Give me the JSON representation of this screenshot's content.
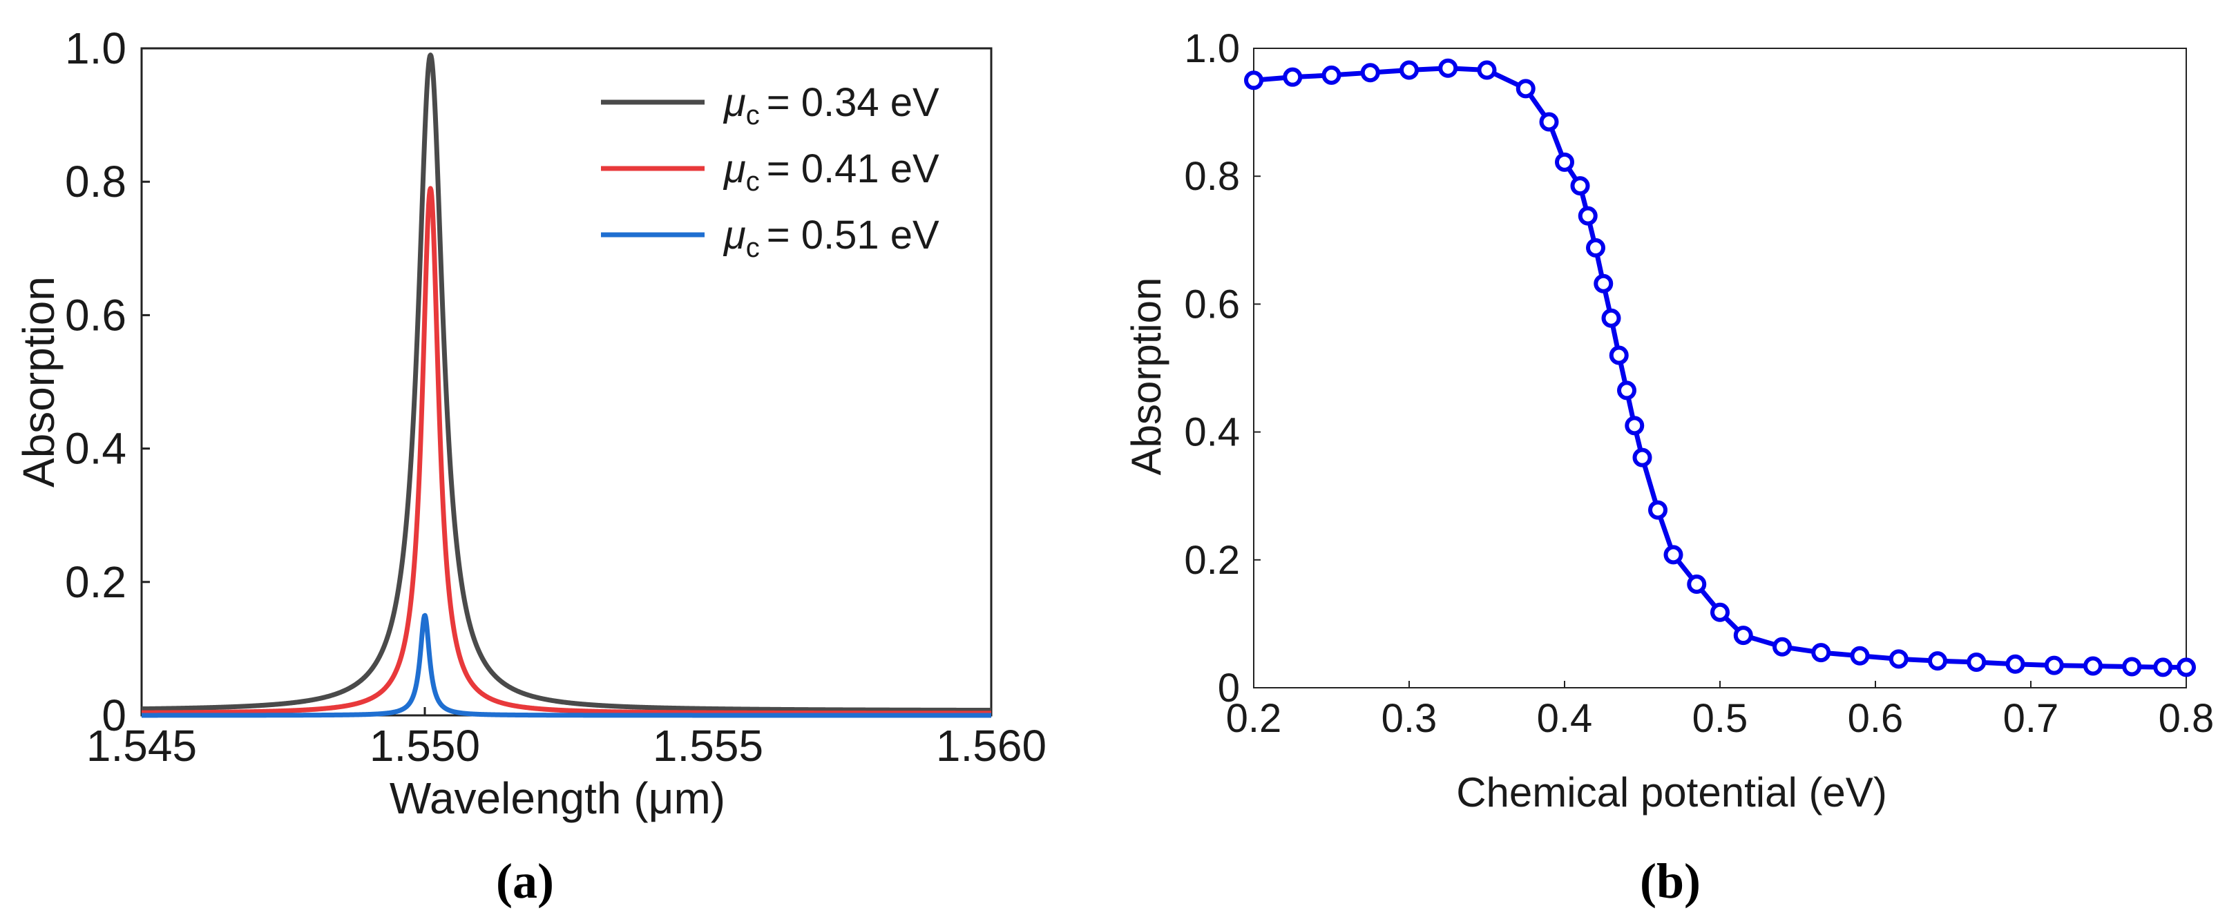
{
  "chart_data": [
    {
      "id": "a",
      "type": "line",
      "panel_label": "(a)",
      "xlabel": "Wavelength (μm)",
      "ylabel": "Absorption",
      "xlim": [
        1.545,
        1.56
      ],
      "ylim": [
        0,
        1.0
      ],
      "xticks": [
        1.545,
        1.55,
        1.555,
        1.56
      ],
      "xtick_labels": [
        "1.545",
        "1.550",
        "1.555",
        "1.560"
      ],
      "yticks": [
        0,
        0.2,
        0.4,
        0.6,
        0.8,
        1.0
      ],
      "ytick_labels": [
        "0",
        "0.2",
        "0.4",
        "0.6",
        "0.8",
        "1.0"
      ],
      "legend_position": "top-right",
      "series": [
        {
          "name": "μc = 0.34 eV",
          "symbol": "μ",
          "sub": "c",
          "value_text": "= 0.34 eV",
          "color": "#4a4a4a",
          "peak_x": 1.5501,
          "peak_y": 0.99,
          "hwhm": 0.00027,
          "base": 0.007
        },
        {
          "name": "μc = 0.41 eV",
          "symbol": "μ",
          "sub": "c",
          "value_text": "= 0.41 eV",
          "color": "#e8393b",
          "peak_x": 1.5501,
          "peak_y": 0.79,
          "hwhm": 0.00018,
          "base": 0.003
        },
        {
          "name": "μc = 0.51 eV",
          "symbol": "μ",
          "sub": "c",
          "value_text": "= 0.51 eV",
          "color": "#1f6fd1",
          "peak_x": 1.55,
          "peak_y": 0.15,
          "hwhm": 0.0001,
          "base": 0.0
        }
      ]
    },
    {
      "id": "b",
      "type": "line",
      "panel_label": "(b)",
      "xlabel": "Chemical potential (eV)",
      "ylabel": "Absorption",
      "xlim": [
        0.2,
        0.8
      ],
      "ylim": [
        0,
        1.0
      ],
      "xticks": [
        0.2,
        0.3,
        0.4,
        0.5,
        0.6,
        0.7,
        0.8
      ],
      "xtick_labels": [
        "0.2",
        "0.3",
        "0.4",
        "0.5",
        "0.6",
        "0.7",
        "0.8"
      ],
      "yticks": [
        0,
        0.2,
        0.4,
        0.6,
        0.8,
        1.0
      ],
      "ytick_labels": [
        "0",
        "0.2",
        "0.4",
        "0.6",
        "0.8",
        "1.0"
      ],
      "color": "#0000ee",
      "series": [
        {
          "name": "Absorption",
          "x": [
            0.2,
            0.225,
            0.25,
            0.275,
            0.3,
            0.325,
            0.35,
            0.375,
            0.39,
            0.4,
            0.41,
            0.415,
            0.42,
            0.425,
            0.43,
            0.435,
            0.44,
            0.445,
            0.45,
            0.46,
            0.47,
            0.485,
            0.5,
            0.515,
            0.54,
            0.565,
            0.59,
            0.615,
            0.64,
            0.665,
            0.69,
            0.715,
            0.74,
            0.765,
            0.785,
            0.8
          ],
          "y": [
            0.95,
            0.955,
            0.958,
            0.962,
            0.966,
            0.969,
            0.966,
            0.937,
            0.885,
            0.822,
            0.785,
            0.738,
            0.688,
            0.632,
            0.578,
            0.52,
            0.465,
            0.41,
            0.36,
            0.278,
            0.208,
            0.162,
            0.118,
            0.082,
            0.064,
            0.055,
            0.05,
            0.045,
            0.042,
            0.04,
            0.037,
            0.035,
            0.034,
            0.033,
            0.032,
            0.032
          ]
        }
      ]
    }
  ]
}
